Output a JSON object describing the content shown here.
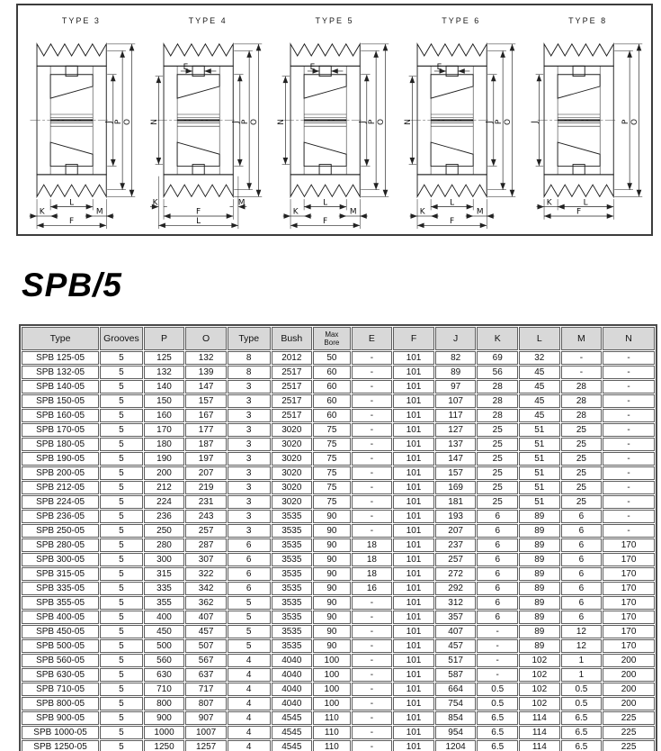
{
  "page": {
    "title": "SPB/5"
  },
  "colors": {
    "header_bg": "#d8d8d8",
    "line": "#1f1f1f",
    "table_border": "#4a4a4a"
  },
  "diagrams": {
    "figures": [
      {
        "label": "TYPE 3",
        "variant": 3,
        "left_dims": [],
        "top_dim": null,
        "right_dims": [
          "J",
          "P",
          "O"
        ],
        "bottom_dims": [
          "L",
          "K",
          "M",
          "F"
        ]
      },
      {
        "label": "TYPE 4",
        "variant": 4,
        "left_dims": [
          "N"
        ],
        "top_dim": "E",
        "right_dims": [
          "J",
          "P",
          "O"
        ],
        "bottom_dims": [
          "K",
          "M",
          "F",
          "L"
        ]
      },
      {
        "label": "TYPE 5",
        "variant": 5,
        "left_dims": [
          "N"
        ],
        "top_dim": "E",
        "right_dims": [
          "J",
          "P",
          "O"
        ],
        "bottom_dims": [
          "L",
          "K",
          "M",
          "F"
        ]
      },
      {
        "label": "TYPE 6",
        "variant": 6,
        "left_dims": [
          "N"
        ],
        "top_dim": "E",
        "right_dims": [
          "J",
          "P",
          "O"
        ],
        "bottom_dims": [
          "L",
          "K",
          "M",
          "F"
        ]
      },
      {
        "label": "TYPE 8",
        "variant": 8,
        "left_dims": [
          "J"
        ],
        "top_dim": null,
        "right_dims": [
          "P",
          "O"
        ],
        "bottom_dims": [
          "K",
          "L",
          "F"
        ]
      }
    ]
  },
  "table": {
    "headers": [
      "Type",
      "Grooves",
      "P",
      "O",
      "Type",
      "Bush",
      "Max\nBore",
      "E",
      "F",
      "J",
      "K",
      "L",
      "M",
      "N"
    ],
    "rows": [
      [
        "SPB 125-05",
        "5",
        "125",
        "132",
        "8",
        "2012",
        "50",
        "-",
        "101",
        "82",
        "69",
        "32",
        "-",
        "-"
      ],
      [
        "SPB 132-05",
        "5",
        "132",
        "139",
        "8",
        "2517",
        "60",
        "-",
        "101",
        "89",
        "56",
        "45",
        "-",
        "-"
      ],
      [
        "SPB 140-05",
        "5",
        "140",
        "147",
        "3",
        "2517",
        "60",
        "-",
        "101",
        "97",
        "28",
        "45",
        "28",
        "-"
      ],
      [
        "SPB 150-05",
        "5",
        "150",
        "157",
        "3",
        "2517",
        "60",
        "-",
        "101",
        "107",
        "28",
        "45",
        "28",
        "-"
      ],
      [
        "SPB 160-05",
        "5",
        "160",
        "167",
        "3",
        "2517",
        "60",
        "-",
        "101",
        "117",
        "28",
        "45",
        "28",
        "-"
      ],
      [
        "SPB 170-05",
        "5",
        "170",
        "177",
        "3",
        "3020",
        "75",
        "-",
        "101",
        "127",
        "25",
        "51",
        "25",
        "-"
      ],
      [
        "SPB 180-05",
        "5",
        "180",
        "187",
        "3",
        "3020",
        "75",
        "-",
        "101",
        "137",
        "25",
        "51",
        "25",
        "-"
      ],
      [
        "SPB 190-05",
        "5",
        "190",
        "197",
        "3",
        "3020",
        "75",
        "-",
        "101",
        "147",
        "25",
        "51",
        "25",
        "-"
      ],
      [
        "SPB 200-05",
        "5",
        "200",
        "207",
        "3",
        "3020",
        "75",
        "-",
        "101",
        "157",
        "25",
        "51",
        "25",
        "-"
      ],
      [
        "SPB 212-05",
        "5",
        "212",
        "219",
        "3",
        "3020",
        "75",
        "-",
        "101",
        "169",
        "25",
        "51",
        "25",
        "-"
      ],
      [
        "SPB 224-05",
        "5",
        "224",
        "231",
        "3",
        "3020",
        "75",
        "-",
        "101",
        "181",
        "25",
        "51",
        "25",
        "-"
      ],
      [
        "SPB 236-05",
        "5",
        "236",
        "243",
        "3",
        "3535",
        "90",
        "-",
        "101",
        "193",
        "6",
        "89",
        "6",
        "-"
      ],
      [
        "SPB 250-05",
        "5",
        "250",
        "257",
        "3",
        "3535",
        "90",
        "-",
        "101",
        "207",
        "6",
        "89",
        "6",
        "-"
      ],
      [
        "SPB 280-05",
        "5",
        "280",
        "287",
        "6",
        "3535",
        "90",
        "18",
        "101",
        "237",
        "6",
        "89",
        "6",
        "170"
      ],
      [
        "SPB 300-05",
        "5",
        "300",
        "307",
        "6",
        "3535",
        "90",
        "18",
        "101",
        "257",
        "6",
        "89",
        "6",
        "170"
      ],
      [
        "SPB 315-05",
        "5",
        "315",
        "322",
        "6",
        "3535",
        "90",
        "18",
        "101",
        "272",
        "6",
        "89",
        "6",
        "170"
      ],
      [
        "SPB 335-05",
        "5",
        "335",
        "342",
        "6",
        "3535",
        "90",
        "16",
        "101",
        "292",
        "6",
        "89",
        "6",
        "170"
      ],
      [
        "SPB 355-05",
        "5",
        "355",
        "362",
        "5",
        "3535",
        "90",
        "-",
        "101",
        "312",
        "6",
        "89",
        "6",
        "170"
      ],
      [
        "SPB 400-05",
        "5",
        "400",
        "407",
        "5",
        "3535",
        "90",
        "-",
        "101",
        "357",
        "6",
        "89",
        "6",
        "170"
      ],
      [
        "SPB 450-05",
        "5",
        "450",
        "457",
        "5",
        "3535",
        "90",
        "-",
        "101",
        "407",
        "-",
        "89",
        "12",
        "170"
      ],
      [
        "SPB 500-05",
        "5",
        "500",
        "507",
        "5",
        "3535",
        "90",
        "-",
        "101",
        "457",
        "-",
        "89",
        "12",
        "170"
      ],
      [
        "SPB 560-05",
        "5",
        "560",
        "567",
        "4",
        "4040",
        "100",
        "-",
        "101",
        "517",
        "-",
        "102",
        "1",
        "200"
      ],
      [
        "SPB 630-05",
        "5",
        "630",
        "637",
        "4",
        "4040",
        "100",
        "-",
        "101",
        "587",
        "-",
        "102",
        "1",
        "200"
      ],
      [
        "SPB 710-05",
        "5",
        "710",
        "717",
        "4",
        "4040",
        "100",
        "-",
        "101",
        "664",
        "0.5",
        "102",
        "0.5",
        "200"
      ],
      [
        "SPB 800-05",
        "5",
        "800",
        "807",
        "4",
        "4040",
        "100",
        "-",
        "101",
        "754",
        "0.5",
        "102",
        "0.5",
        "200"
      ],
      [
        "SPB 900-05",
        "5",
        "900",
        "907",
        "4",
        "4545",
        "110",
        "-",
        "101",
        "854",
        "6.5",
        "114",
        "6.5",
        "225"
      ],
      [
        "SPB 1000-05",
        "5",
        "1000",
        "1007",
        "4",
        "4545",
        "110",
        "-",
        "101",
        "954",
        "6.5",
        "114",
        "6.5",
        "225"
      ],
      [
        "SPB 1250-05",
        "5",
        "1250",
        "1257",
        "4",
        "4545",
        "110",
        "-",
        "101",
        "1204",
        "6.5",
        "114",
        "6.5",
        "225"
      ]
    ]
  }
}
